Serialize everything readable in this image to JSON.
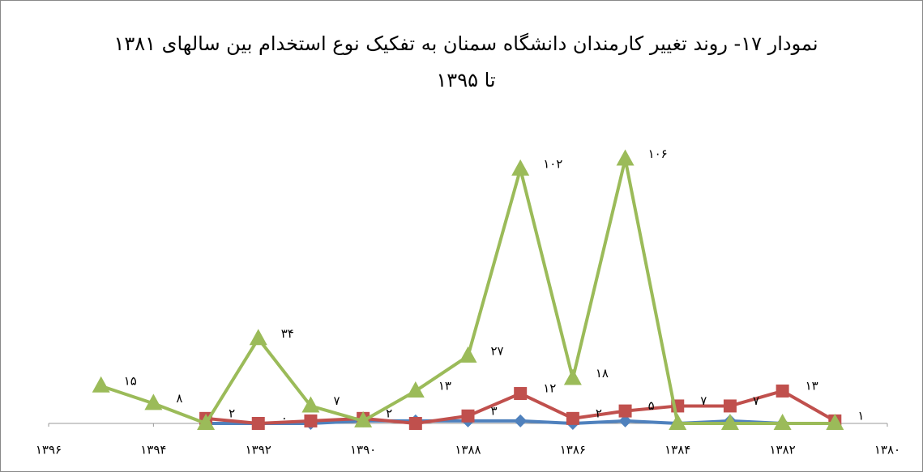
{
  "chart_data": {
    "type": "line",
    "title": [
      "نمودار ۱۷- روند تغییر کارمندان دانشگاه سمنان به تفکیک نوع استخدام بین سالهای ۱۳۸۱",
      "تا ۱۳۹۵"
    ],
    "x": [
      1395,
      1394,
      1393,
      1392,
      1391,
      1390,
      1389,
      1388,
      1387,
      1386,
      1385,
      1384,
      1383,
      1382,
      1381
    ],
    "xlim": [
      1396,
      1380
    ],
    "xticks": [
      {
        "value": 1396,
        "label": "۱۳۹۶"
      },
      {
        "value": 1394,
        "label": "۱۳۹۴"
      },
      {
        "value": 1392,
        "label": "۱۳۹۲"
      },
      {
        "value": 1390,
        "label": "۱۳۹۰"
      },
      {
        "value": 1388,
        "label": "۱۳۸۸"
      },
      {
        "value": 1386,
        "label": "۱۳۸۶"
      },
      {
        "value": 1384,
        "label": "۱۳۸۴"
      },
      {
        "value": 1382,
        "label": "۱۳۸۲"
      },
      {
        "value": 1380,
        "label": "۱۳۸۰"
      }
    ],
    "ylim": [
      0,
      120
    ],
    "series": [
      {
        "color": "#4f81bd",
        "marker": "diamond",
        "values": [
          null,
          null,
          0,
          0,
          0,
          1,
          1,
          1,
          1,
          0,
          1,
          0,
          1,
          0,
          0
        ]
      },
      {
        "color": "#c0504d",
        "marker": "square",
        "values": [
          null,
          null,
          2,
          0,
          1,
          2,
          0,
          3,
          12,
          2,
          5,
          7,
          7,
          13,
          1
        ],
        "value_labels": [
          null,
          null,
          "۲",
          "۰",
          null,
          "۲",
          null,
          "۳",
          "۱۲",
          "۲",
          "۵",
          "۷",
          "۷",
          "۱۳",
          "۱"
        ]
      },
      {
        "color": "#9bbb59",
        "marker": "triangle",
        "values": [
          15,
          8,
          0,
          34,
          7,
          1,
          13,
          27,
          102,
          18,
          106,
          0,
          0,
          0,
          0
        ],
        "value_labels": [
          "۱۵",
          "۸",
          null,
          "۳۴",
          "۷",
          null,
          "۱۳",
          "۲۷",
          "۱۰۲",
          "۱۸",
          "۱۰۶",
          null,
          null,
          null,
          null
        ]
      }
    ]
  }
}
